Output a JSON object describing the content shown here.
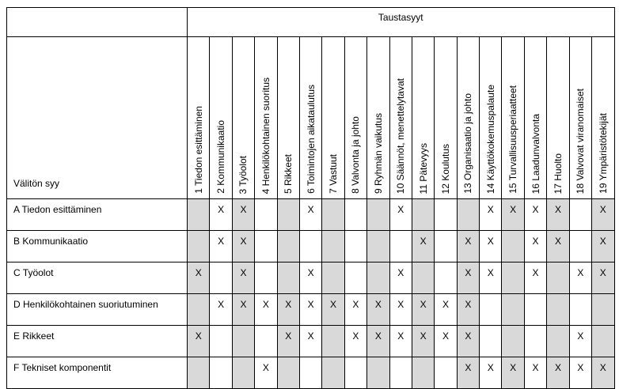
{
  "header": {
    "group_label": "Taustasyyt",
    "stub_label": "Välitön syy"
  },
  "columns": [
    "1 Tiedon esittäminen",
    "2 Kommunikaatio",
    "3 Työolot",
    "4 Henkilökohtainen suoritus",
    "5 Rikkeet",
    "6 Toimintojen aikataulutus",
    "7 Vastuut",
    "8 Valvonta ja johto",
    "9 Ryhmän vaikutus",
    "10 Säännöt, menettelytavat",
    "11 Pätevyys",
    "12 Koulutus",
    "13 Organisaatio ja johto",
    "14 Käyttökokemuspalaute",
    "15 Turvallisuusperiaatteet",
    "16 Laadunvalvonta",
    "17 Huolto",
    "18 Valvovat viranomaiset",
    "19 Ympäristötekijät"
  ],
  "shaded_columns": [
    1,
    3,
    5,
    7,
    9,
    11,
    13,
    15,
    17,
    19
  ],
  "rows": [
    {
      "label": "A Tiedon esittäminen",
      "marks": [
        2,
        3,
        6,
        10,
        14,
        15,
        16,
        17,
        19
      ]
    },
    {
      "label": "B Kommunikaatio",
      "marks": [
        2,
        3,
        11,
        13,
        14,
        16,
        17,
        19
      ]
    },
    {
      "label": "C Työolot",
      "marks": [
        1,
        3,
        6,
        10,
        13,
        14,
        16,
        18,
        19
      ]
    },
    {
      "label": "D Henkilökohtainen suoriutuminen",
      "marks": [
        2,
        3,
        4,
        5,
        6,
        7,
        8,
        9,
        10,
        11,
        12,
        13
      ]
    },
    {
      "label": "E Rikkeet",
      "marks": [
        1,
        5,
        6,
        8,
        9,
        10,
        11,
        12,
        13,
        18
      ]
    },
    {
      "label": "F Tekniset komponentit",
      "marks": [
        4,
        13,
        14,
        15,
        16,
        17,
        18,
        19
      ]
    }
  ],
  "mark_symbol": "X"
}
